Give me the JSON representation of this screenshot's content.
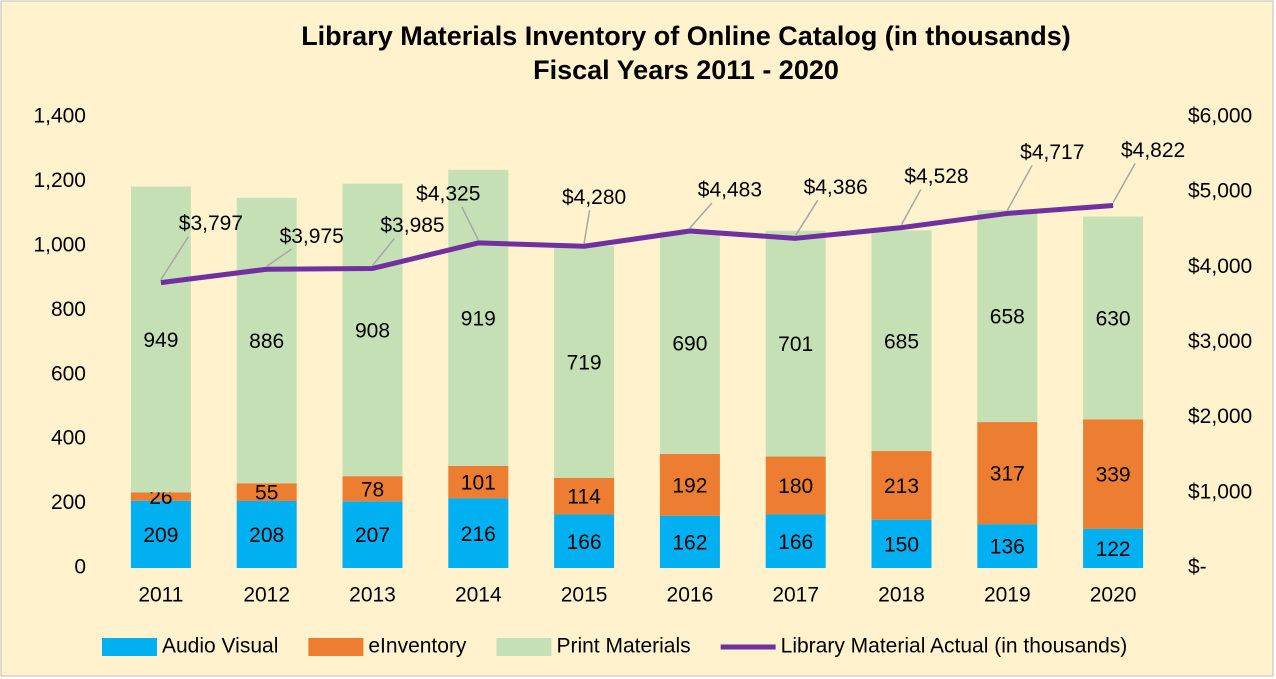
{
  "chart_data": {
    "type": "bar",
    "title": "Library Materials Inventory of Online Catalog (in thousands)",
    "subtitle": "Fiscal Years 2011 - 2020",
    "stacked": true,
    "categories": [
      "2011",
      "2012",
      "2013",
      "2014",
      "2015",
      "2016",
      "2017",
      "2018",
      "2019",
      "2020"
    ],
    "series": [
      {
        "name": "Audio Visual",
        "color": "#00b0f0",
        "values": [
          209,
          208,
          207,
          216,
          166,
          162,
          166,
          150,
          136,
          122
        ]
      },
      {
        "name": "eInventory",
        "color": "#ed7d31",
        "values": [
          26,
          55,
          78,
          101,
          114,
          192,
          180,
          213,
          317,
          339
        ]
      },
      {
        "name": "Print Materials",
        "color": "#c5e0b4",
        "values": [
          949,
          886,
          908,
          919,
          719,
          690,
          701,
          685,
          658,
          630
        ]
      },
      {
        "name": "Library Material Actual (in thousands)",
        "type": "line",
        "axis": "y2",
        "color": "#7030a0",
        "values": [
          3797,
          3975,
          3985,
          4325,
          4280,
          4483,
          4386,
          4528,
          4717,
          4822
        ],
        "value_labels": [
          "$3,797",
          "$3,975",
          "$3,985",
          "$4,325",
          "$4,280",
          "$4,483",
          "$4,386",
          "$4,528",
          "$4,717",
          "$4,822"
        ]
      }
    ],
    "ylim": [
      0,
      1400
    ],
    "yticks": [
      0,
      200,
      400,
      600,
      800,
      {
        "value": 1000,
        "label": "1,000"
      },
      {
        "value": 1200,
        "label": "1,200"
      },
      {
        "value": 1400,
        "label": "1,400"
      }
    ],
    "y2lim": [
      0,
      6000
    ],
    "y2ticks": [
      {
        "value": 0,
        "label": "$-"
      },
      {
        "value": 1000,
        "label": "$1,000"
      },
      {
        "value": 2000,
        "label": "$2,000"
      },
      {
        "value": 3000,
        "label": "$3,000"
      },
      {
        "value": 4000,
        "label": "$4,000"
      },
      {
        "value": 5000,
        "label": "$5,000"
      },
      {
        "value": 6000,
        "label": "$6,000"
      }
    ],
    "legend": "bottom",
    "grid": false
  }
}
